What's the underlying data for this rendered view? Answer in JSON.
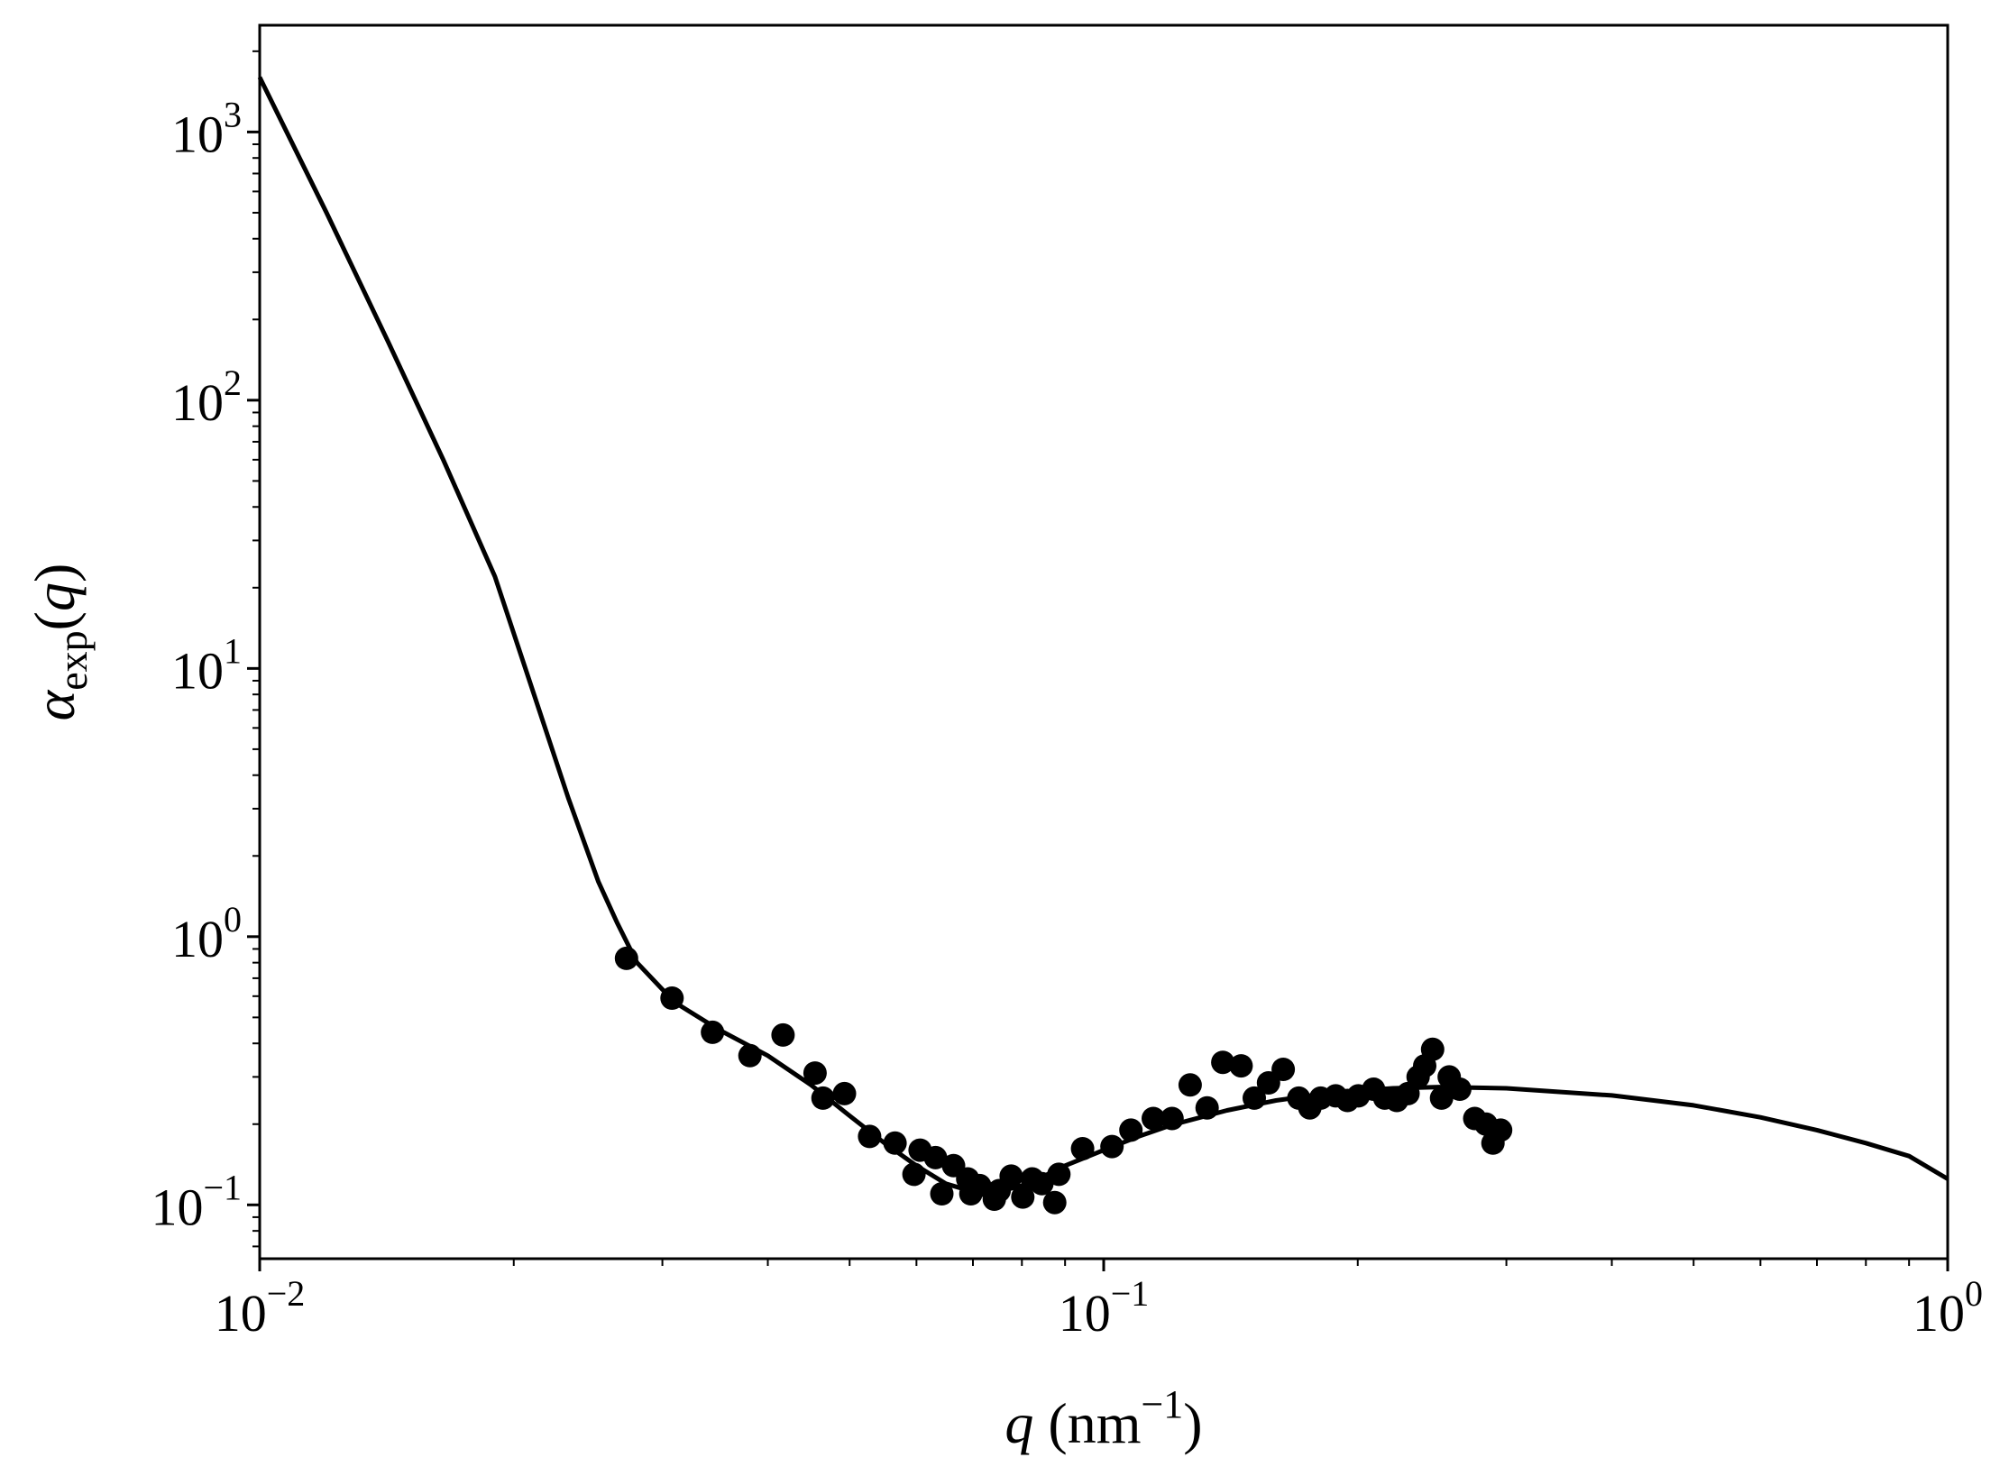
{
  "chart_data": {
    "type": "scatter",
    "xscale": "log",
    "yscale": "log",
    "xlim": [
      0.01,
      1
    ],
    "ylim": [
      0.063,
      2500
    ],
    "xlabel": {
      "var": "q",
      "unit": " (nm",
      "unit_exp": "−1",
      "unit_close": ")"
    },
    "ylabel": {
      "base": "α",
      "sub": "exp",
      "open": "(",
      "var": "q",
      "close": ")"
    },
    "xticks": [
      {
        "value": 0.01,
        "base": "10",
        "exp": "−2"
      },
      {
        "value": 0.1,
        "base": "10",
        "exp": "−1"
      },
      {
        "value": 1,
        "base": "10",
        "exp": "0"
      }
    ],
    "yticks": [
      {
        "value": 0.1,
        "base": "10",
        "exp": "−1"
      },
      {
        "value": 1,
        "base": "10",
        "exp": "0"
      },
      {
        "value": 10,
        "base": "10",
        "exp": "1"
      },
      {
        "value": 100,
        "base": "10",
        "exp": "2"
      },
      {
        "value": 1000,
        "base": "10",
        "exp": "3"
      }
    ],
    "grid": false,
    "colors": {
      "line": "#000000",
      "points": "#000000",
      "axes": "#000000"
    },
    "series": [
      {
        "kind": "line",
        "x": [
          0.01,
          0.012,
          0.0142,
          0.0165,
          0.019,
          0.021,
          0.0232,
          0.0252,
          0.0265,
          0.028,
          0.031,
          0.035,
          0.04,
          0.045,
          0.05,
          0.055,
          0.06,
          0.065,
          0.07,
          0.075,
          0.08,
          0.085,
          0.09,
          0.1,
          0.11,
          0.12,
          0.14,
          0.16,
          0.18,
          0.2,
          0.22,
          0.25,
          0.3,
          0.4,
          0.5,
          0.6,
          0.7,
          0.8,
          0.9,
          1.0
        ],
        "y": [
          1600,
          500,
          165,
          60,
          22,
          8.5,
          3.3,
          1.6,
          1.13,
          0.8,
          0.57,
          0.45,
          0.36,
          0.28,
          0.215,
          0.17,
          0.14,
          0.12,
          0.112,
          0.112,
          0.118,
          0.128,
          0.14,
          0.16,
          0.18,
          0.198,
          0.225,
          0.245,
          0.258,
          0.266,
          0.272,
          0.275,
          0.272,
          0.256,
          0.235,
          0.212,
          0.19,
          0.17,
          0.152,
          0.125
        ]
      },
      {
        "kind": "points",
        "x": [
          0.0272,
          0.0308,
          0.0344,
          0.0381,
          0.0417,
          0.0455,
          0.0465,
          0.0493,
          0.0528,
          0.0566,
          0.0596,
          0.0606,
          0.0632,
          0.0643,
          0.0664,
          0.069,
          0.0696,
          0.0713,
          0.0742,
          0.0752,
          0.0777,
          0.0802,
          0.0823,
          0.0845,
          0.0875,
          0.0885,
          0.0944,
          0.1023,
          0.1077,
          0.1145,
          0.1205,
          0.1266,
          0.1326,
          0.1384,
          0.1455,
          0.1508,
          0.1568,
          0.1632,
          0.1703,
          0.1755,
          0.1808,
          0.1883,
          0.1945,
          0.2003,
          0.2088,
          0.2153,
          0.2225,
          0.2294,
          0.2358,
          0.2401,
          0.2453,
          0.2514,
          0.2567,
          0.2642,
          0.2752,
          0.2838,
          0.2892,
          0.2953
        ],
        "y": [
          0.83,
          0.59,
          0.44,
          0.36,
          0.43,
          0.31,
          0.25,
          0.26,
          0.18,
          0.17,
          0.13,
          0.16,
          0.15,
          0.11,
          0.14,
          0.125,
          0.11,
          0.118,
          0.105,
          0.113,
          0.128,
          0.107,
          0.125,
          0.12,
          0.102,
          0.13,
          0.162,
          0.165,
          0.19,
          0.21,
          0.21,
          0.28,
          0.23,
          0.34,
          0.33,
          0.25,
          0.285,
          0.32,
          0.25,
          0.23,
          0.25,
          0.255,
          0.245,
          0.255,
          0.27,
          0.25,
          0.245,
          0.26,
          0.3,
          0.33,
          0.38,
          0.25,
          0.3,
          0.27,
          0.21,
          0.2,
          0.17,
          0.19
        ]
      }
    ]
  }
}
